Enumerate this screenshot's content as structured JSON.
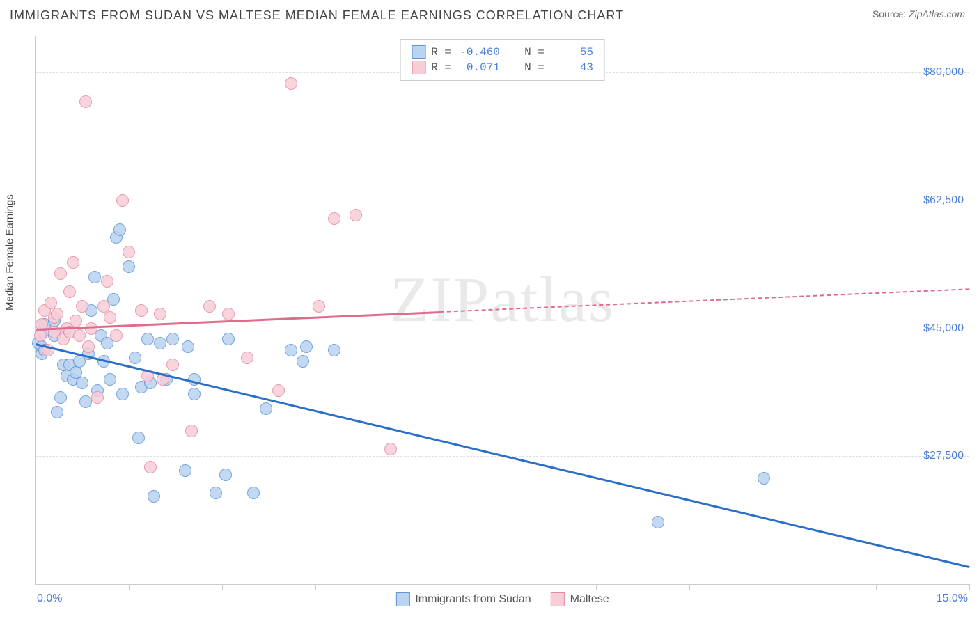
{
  "header": {
    "title": "IMMIGRANTS FROM SUDAN VS MALTESE MEDIAN FEMALE EARNINGS CORRELATION CHART",
    "source_prefix": "Source: ",
    "source_name": "ZipAtlas.com"
  },
  "chart": {
    "type": "scatter",
    "watermark": "ZIPatlas",
    "watermark_bold": "ZIP",
    "watermark_light": "atlas",
    "yaxis_title": "Median Female Earnings",
    "xlim": [
      0,
      15
    ],
    "ylim": [
      10000,
      85000
    ],
    "x_tick_labels": {
      "min": "0.0%",
      "max": "15.0%"
    },
    "x_minor_ticks": [
      1.5,
      3.0,
      4.5,
      6.0,
      7.5,
      9.0,
      10.5,
      12.0,
      13.5,
      15.0
    ],
    "y_gridlines": [
      {
        "value": 27500,
        "label": "$27,500"
      },
      {
        "value": 45000,
        "label": "$45,000"
      },
      {
        "value": 62500,
        "label": "$62,500"
      },
      {
        "value": 80000,
        "label": "$80,000"
      }
    ],
    "background_color": "#ffffff",
    "grid_color": "#dddddd",
    "axis_color": "#cccccc",
    "tick_label_color": "#4a7fd8",
    "point_radius": 9,
    "point_stroke_width": 1.5,
    "series": [
      {
        "key": "sudan",
        "name": "Immigrants from Sudan",
        "fill": "#b9d3f0",
        "stroke": "#5f94d6",
        "line_color": "#2b6fc7",
        "R": "-0.460",
        "N": "55",
        "regression": {
          "x1": 0,
          "y1": 43000,
          "x2": 15,
          "y2": 12500,
          "dashed_from_x": null
        },
        "points": [
          [
            0.05,
            43000
          ],
          [
            0.1,
            42500
          ],
          [
            0.12,
            44500
          ],
          [
            0.1,
            41500
          ],
          [
            0.15,
            45500
          ],
          [
            0.15,
            42000
          ],
          [
            0.3,
            46000
          ],
          [
            0.3,
            44000
          ],
          [
            0.35,
            33500
          ],
          [
            0.4,
            35500
          ],
          [
            0.45,
            40000
          ],
          [
            0.5,
            38500
          ],
          [
            0.55,
            40000
          ],
          [
            0.6,
            38000
          ],
          [
            0.65,
            39000
          ],
          [
            0.7,
            40500
          ],
          [
            0.75,
            37500
          ],
          [
            0.8,
            35000
          ],
          [
            0.85,
            41500
          ],
          [
            0.9,
            47500
          ],
          [
            0.95,
            52000
          ],
          [
            1.0,
            36500
          ],
          [
            1.05,
            44000
          ],
          [
            1.1,
            40500
          ],
          [
            1.15,
            43000
          ],
          [
            1.2,
            38000
          ],
          [
            1.25,
            49000
          ],
          [
            1.3,
            57500
          ],
          [
            1.35,
            58500
          ],
          [
            1.4,
            36000
          ],
          [
            1.5,
            53500
          ],
          [
            1.6,
            41000
          ],
          [
            1.65,
            30000
          ],
          [
            1.7,
            37000
          ],
          [
            1.8,
            43500
          ],
          [
            1.85,
            37500
          ],
          [
            1.9,
            22000
          ],
          [
            2.0,
            43000
          ],
          [
            2.1,
            38000
          ],
          [
            2.2,
            43500
          ],
          [
            2.4,
            25500
          ],
          [
            2.45,
            42500
          ],
          [
            2.55,
            36000
          ],
          [
            2.55,
            38000
          ],
          [
            2.9,
            22500
          ],
          [
            3.05,
            25000
          ],
          [
            3.1,
            43500
          ],
          [
            3.5,
            22500
          ],
          [
            3.7,
            34000
          ],
          [
            4.1,
            42000
          ],
          [
            4.3,
            40500
          ],
          [
            4.35,
            42500
          ],
          [
            4.8,
            42000
          ],
          [
            10.0,
            18500
          ],
          [
            11.7,
            24500
          ]
        ]
      },
      {
        "key": "maltese",
        "name": "Maltese",
        "fill": "#f7cdd8",
        "stroke": "#e48aa3",
        "line_color": "#e06b8d",
        "R": "0.071",
        "N": "43",
        "regression": {
          "x1": 0,
          "y1": 45000,
          "x2": 15,
          "y2": 50500,
          "dashed_from_x": 6.5
        },
        "points": [
          [
            0.08,
            44000
          ],
          [
            0.1,
            45500
          ],
          [
            0.15,
            47500
          ],
          [
            0.2,
            42000
          ],
          [
            0.25,
            48500
          ],
          [
            0.3,
            44500
          ],
          [
            0.3,
            46500
          ],
          [
            0.35,
            47000
          ],
          [
            0.4,
            52500
          ],
          [
            0.45,
            43500
          ],
          [
            0.5,
            45000
          ],
          [
            0.55,
            44500
          ],
          [
            0.55,
            50000
          ],
          [
            0.6,
            54000
          ],
          [
            0.65,
            46000
          ],
          [
            0.7,
            44000
          ],
          [
            0.75,
            48000
          ],
          [
            0.8,
            76000
          ],
          [
            0.85,
            42500
          ],
          [
            0.9,
            45000
          ],
          [
            1.0,
            35500
          ],
          [
            1.1,
            48000
          ],
          [
            1.15,
            51500
          ],
          [
            1.2,
            46500
          ],
          [
            1.3,
            44000
          ],
          [
            1.4,
            62500
          ],
          [
            1.5,
            55500
          ],
          [
            1.7,
            47500
          ],
          [
            1.8,
            38500
          ],
          [
            1.85,
            26000
          ],
          [
            2.0,
            47000
          ],
          [
            2.05,
            38000
          ],
          [
            2.2,
            40000
          ],
          [
            2.5,
            31000
          ],
          [
            2.8,
            48000
          ],
          [
            3.1,
            47000
          ],
          [
            3.4,
            41000
          ],
          [
            3.9,
            36500
          ],
          [
            4.1,
            78500
          ],
          [
            4.55,
            48000
          ],
          [
            4.8,
            60000
          ],
          [
            5.15,
            60500
          ],
          [
            5.7,
            28500
          ]
        ]
      }
    ],
    "legend_labels": {
      "R": "R =",
      "N": "N ="
    }
  }
}
